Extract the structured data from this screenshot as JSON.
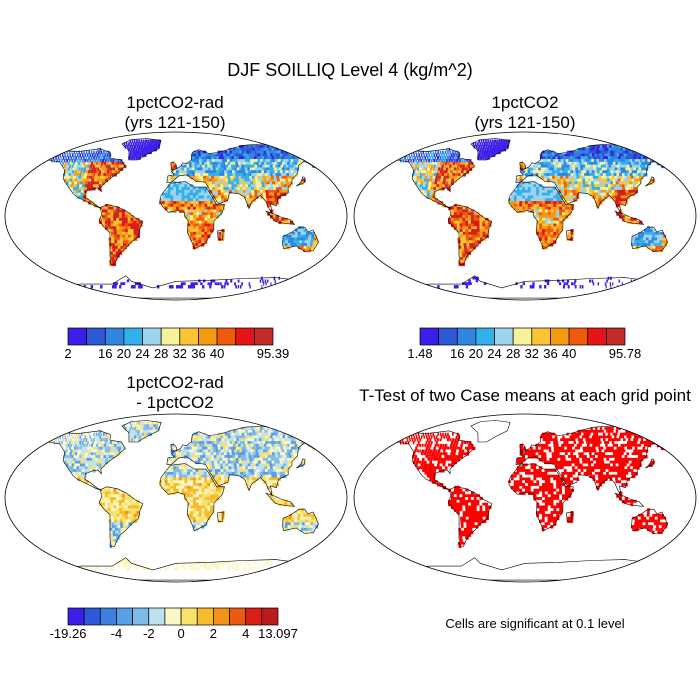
{
  "figure": {
    "title": "DJF SOILLIQ Level 4 (kg/m^2)"
  },
  "panels": [
    {
      "title_line1": "1pctCO2-rad",
      "title_line2": "(yrs 121-150)",
      "colorbar": {
        "colors": [
          "#3a1fe8",
          "#2e58d8",
          "#2f86e0",
          "#32b0ec",
          "#9fd2ec",
          "#f6f29a",
          "#f9c436",
          "#f59a12",
          "#ef5a0c",
          "#e61515",
          "#c32a2a"
        ],
        "labels": [
          "2",
          "16",
          "20",
          "24",
          "28",
          "32",
          "36",
          "40",
          "95.39"
        ],
        "label_boundaries": [
          0,
          2,
          3,
          4,
          5,
          6,
          7,
          8,
          11
        ]
      }
    },
    {
      "title_line1": "1pctCO2",
      "title_line2": "(yrs 121-150)",
      "colorbar": {
        "colors": [
          "#3a1fe8",
          "#2e58d8",
          "#2f86e0",
          "#32b0ec",
          "#9fd2ec",
          "#f6f29a",
          "#f9c436",
          "#f59a12",
          "#ef5a0c",
          "#e61515",
          "#c32a2a"
        ],
        "labels": [
          "1.48",
          "16",
          "20",
          "24",
          "28",
          "32",
          "36",
          "40",
          "95.78"
        ],
        "label_boundaries": [
          0,
          2,
          3,
          4,
          5,
          6,
          7,
          8,
          11
        ]
      }
    },
    {
      "title_line1": "1pctCO2-rad",
      "title_line2": "- 1pctCO2",
      "colorbar": {
        "colors": [
          "#3a1fe8",
          "#2e58d8",
          "#3f7fe0",
          "#5a9ee6",
          "#7fbbe8",
          "#bfe0f0",
          "#fbf7c4",
          "#f8e26a",
          "#f7bc2c",
          "#f2921a",
          "#ea5a12",
          "#d92016",
          "#b81c1c"
        ],
        "labels": [
          "-19.26",
          "-4",
          "-2",
          "0",
          "2",
          "4",
          "13.097"
        ],
        "label_boundaries": [
          0,
          3,
          5,
          7,
          9,
          11,
          13
        ]
      }
    },
    {
      "title_line1": "T-Test of two Case means at each grid point",
      "title_line2": "",
      "note": "Cells are significant at 0.1 level"
    }
  ]
}
